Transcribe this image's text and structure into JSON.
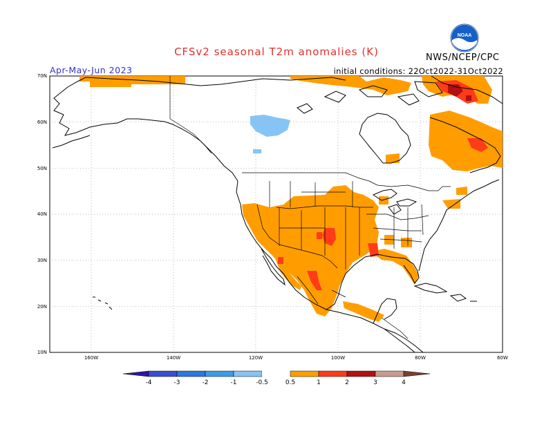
{
  "header": {
    "title": "CFSv2  seasonal  T2m  anomalies  (K)",
    "season": "Apr-May-Jun 2023",
    "initial_conditions": "initial conditions: 22Oct2022-31Oct2022",
    "organization": "NWS/NCEP/CPC",
    "logo_text": "NOAA"
  },
  "axes": {
    "lat_labels": [
      "70N",
      "60N",
      "50N",
      "40N",
      "30N",
      "20N",
      "10N"
    ],
    "lon_labels": [
      "160W",
      "140W",
      "120W",
      "100W",
      "80W",
      "60W"
    ]
  },
  "colorbar": {
    "labels": [
      "-4",
      "-3",
      "-2",
      "-1",
      "-0.5",
      "0.5",
      "1",
      "2",
      "3",
      "4"
    ],
    "colors": [
      "#2b18a0",
      "#3a4ed0",
      "#2d78e0",
      "#3f9ae8",
      "#86c4f5",
      "#ffffff",
      "#ff9d00",
      "#ff3b1a",
      "#b31010",
      "#c79c8e",
      "#7a4030"
    ]
  },
  "colors": {
    "warm_light": "#ff9d00",
    "warm_mid": "#ff3b1a",
    "warm_strong": "#b31010",
    "cool_light": "#86c4f5"
  }
}
